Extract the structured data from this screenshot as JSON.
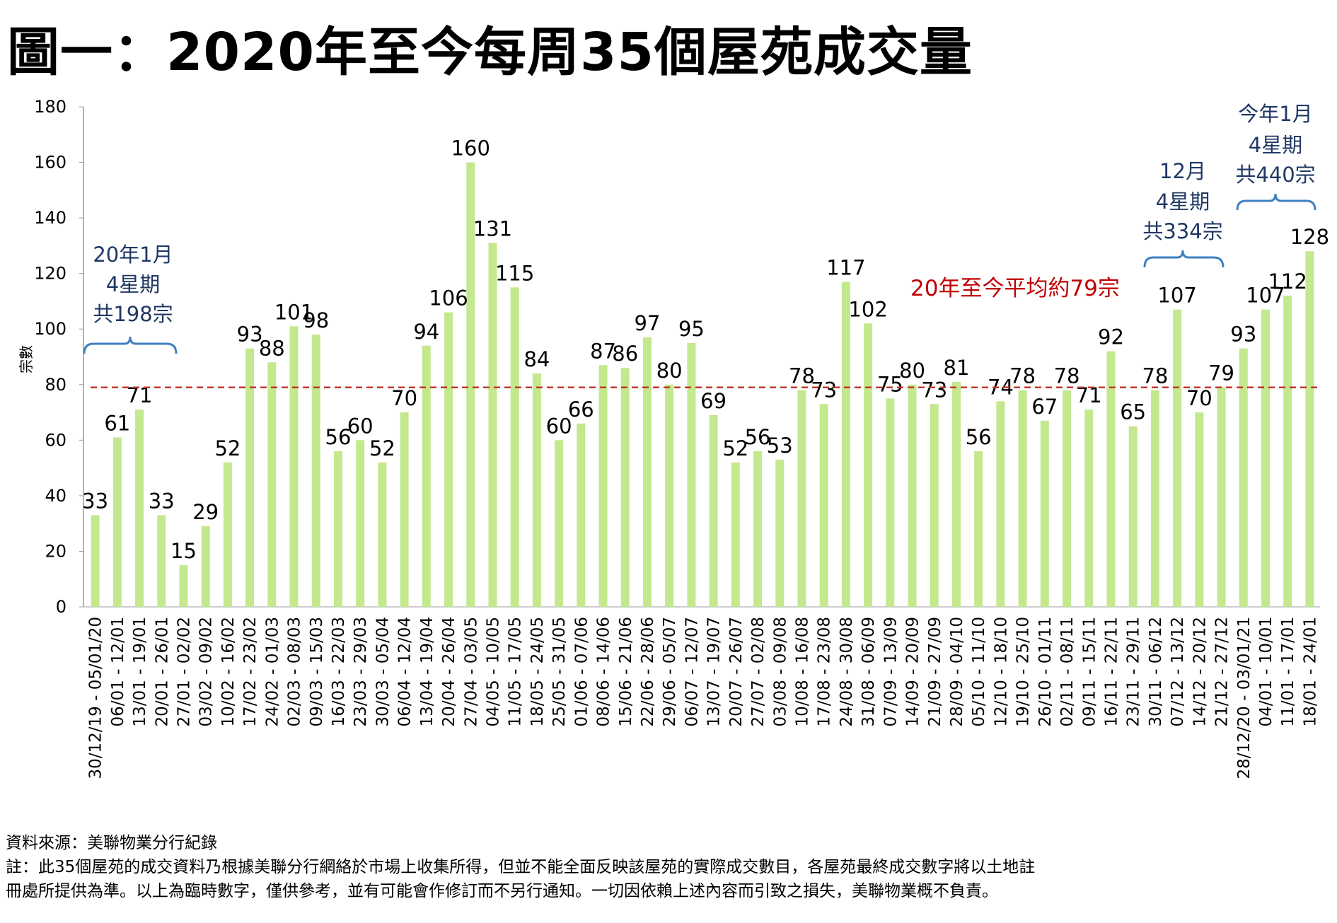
{
  "title": "圖一：2020年至今每周35個屋苑成交量",
  "chart_data": {
    "type": "bar",
    "title": "圖一：2020年至今每周35個屋苑成交量",
    "xlabel": "",
    "ylabel": "宗數",
    "ylim": [
      0,
      180
    ],
    "yticks": [
      0,
      20,
      40,
      60,
      80,
      100,
      120,
      140,
      160,
      180
    ],
    "grid": false,
    "bar_color": "#c4e88e",
    "categories": [
      "30/12/19 - 05/01/20",
      "06/01 - 12/01",
      "13/01 - 19/01",
      "20/01 - 26/01",
      "27/01 - 02/02",
      "03/02 - 09/02",
      "10/02 - 16/02",
      "17/02 - 23/02",
      "24/02 - 01/03",
      "02/03 - 08/03",
      "09/03 - 15/03",
      "16/03 - 22/03",
      "23/03 - 29/03",
      "30/03 - 05/04",
      "06/04 - 12/04",
      "13/04 - 19/04",
      "20/04 - 26/04",
      "27/04 - 03/05",
      "04/05 - 10/05",
      "11/05 - 17/05",
      "18/05 - 24/05",
      "25/05 - 31/05",
      "01/06 - 07/06",
      "08/06 - 14/06",
      "15/06 - 21/06",
      "22/06 - 28/06",
      "29/06 - 05/07",
      "06/07 - 12/07",
      "13/07 - 19/07",
      "20/07 - 26/07",
      "27/07 - 02/08",
      "03/08 - 09/08",
      "10/08 - 16/08",
      "17/08 - 23/08",
      "24/08 - 30/08",
      "31/08 - 06/09",
      "07/09 - 13/09",
      "14/09 - 20/09",
      "21/09 - 27/09",
      "28/09 - 04/10",
      "05/10 - 11/10",
      "12/10 - 18/10",
      "19/10 - 25/10",
      "26/10 - 01/11",
      "02/11 - 08/11",
      "09/11 - 15/11",
      "16/11 - 22/11",
      "23/11 - 29/11",
      "30/11 - 06/12",
      "07/12 - 13/12",
      "14/12 - 20/12",
      "21/12 - 27/12",
      "28/12/20 - 03/01/21",
      "04/01 - 10/01",
      "11/01 - 17/01",
      "18/01 - 24/01"
    ],
    "values": [
      33,
      61,
      71,
      33,
      15,
      29,
      52,
      93,
      88,
      101,
      98,
      56,
      60,
      52,
      70,
      94,
      106,
      160,
      131,
      115,
      84,
      60,
      66,
      87,
      86,
      97,
      80,
      95,
      69,
      52,
      56,
      53,
      78,
      73,
      117,
      102,
      75,
      80,
      73,
      81,
      56,
      74,
      78,
      67,
      78,
      71,
      92,
      65,
      78,
      107,
      70,
      79,
      93,
      107,
      112,
      128
    ],
    "reference_line": {
      "value": 79,
      "color": "#c0392b",
      "label": "20年至今平均約79宗"
    },
    "annotations": [
      {
        "lines": [
          "20年1月",
          "4星期",
          "共198宗"
        ],
        "color": "#1f3864"
      },
      {
        "lines": [
          "12月",
          "4星期",
          "共334宗"
        ],
        "color": "#1f3864"
      },
      {
        "lines": [
          "今年1月",
          "4星期",
          "共440宗"
        ],
        "color": "#1f3864"
      }
    ]
  },
  "footer": {
    "source": "資料來源：美聯物業分行紀錄",
    "note_line1": "註：此35個屋苑的成交資料乃根據美聯分行網絡於市場上收集所得，但並不能全面反映該屋苑的實際成交數目，各屋苑最終成交數字將以土地註",
    "note_line2": "冊處所提供為準。以上為臨時數字，僅供參考，並有可能會作修訂而不另行通知。一切因依賴上述內容而引致之損失，美聯物業概不負責。"
  }
}
